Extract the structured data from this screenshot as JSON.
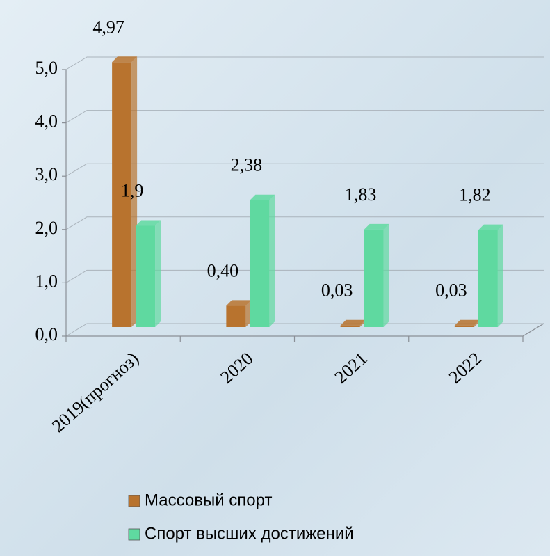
{
  "chart_data": {
    "type": "bar3d",
    "categories": [
      "2019(прогноз)",
      "2020",
      "2021",
      "2022"
    ],
    "series": [
      {
        "name": "Массовый спорт",
        "color": "#b8732e",
        "values": [
          4.97,
          0.4,
          0.03,
          0.03
        ],
        "value_labels": [
          "4,97",
          "0,40",
          "0,03",
          "0,03"
        ]
      },
      {
        "name": "Спорт высших достижений",
        "color": "#5fd9a0",
        "values": [
          1.9,
          2.38,
          1.83,
          1.82
        ],
        "value_labels": [
          "1,9",
          "2,38",
          "1,83",
          "1,82"
        ]
      }
    ],
    "ylim": [
      0,
      5
    ],
    "yticks": [
      {
        "value": 0,
        "label": "0,0"
      },
      {
        "value": 1,
        "label": "1,0"
      },
      {
        "value": 2,
        "label": "2,0"
      },
      {
        "value": 3,
        "label": "3,0"
      },
      {
        "value": 4,
        "label": "4,0"
      },
      {
        "value": 5,
        "label": "5,0"
      }
    ],
    "grid": true
  }
}
